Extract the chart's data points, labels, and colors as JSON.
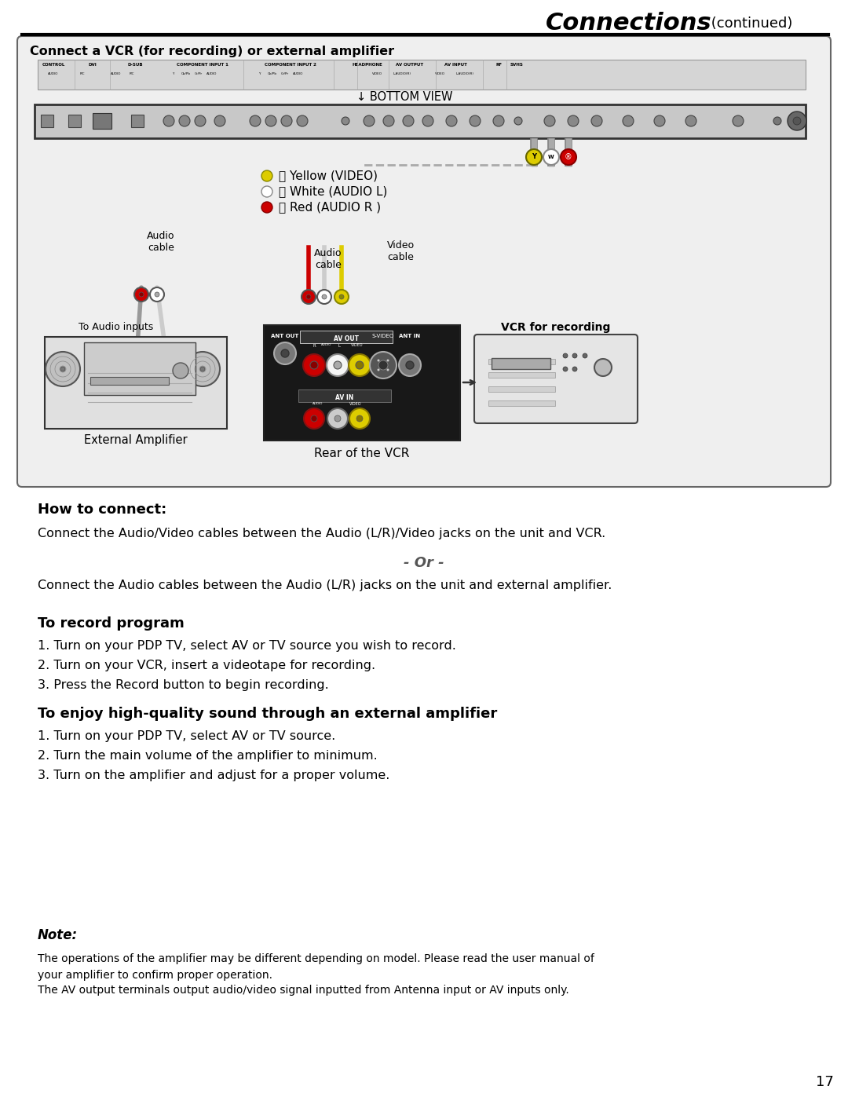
{
  "page_title": "Connections",
  "page_title_suffix": " (continued)",
  "page_number": "17",
  "bg_color": "#ffffff",
  "box_title": "Connect a VCR (for recording) or external amplifier",
  "how_to_connect_title": "How to connect:",
  "how_to_connect_text1": "Connect the Audio/Video cables between the Audio (L/R)/Video jacks on the unit and VCR.",
  "how_to_connect_or": "- Or -",
  "how_to_connect_text2": "Connect the Audio cables between the Audio (L/R) jacks on the unit and external amplifier.",
  "record_title": "To record program",
  "record_steps": [
    "1. Turn on your PDP TV, select AV or TV source you wish to record.",
    "2. Turn on your VCR, insert a videotape for recording.",
    "3. Press the Record button to begin recording."
  ],
  "enjoy_title": "To enjoy high-quality sound through an external amplifier",
  "enjoy_steps": [
    "1. Turn on your PDP TV, select AV or TV source.",
    "2. Turn the main volume of the amplifier to minimum.",
    "3. Turn on the amplifier and adjust for a proper volume."
  ],
  "note_title": "Note:",
  "note_text1": "The operations of the amplifier may be different depending on model. Please read the user manual of",
  "note_text2": "your amplifier to confirm proper operation.",
  "note_text3": "The AV output terminals output audio/video signal inputted from Antenna input or AV inputs only.",
  "yellow_label": "ⓨ Yellow (VIDEO)",
  "white_label": "ⓩ White (AUDIO L)",
  "red_label": "ⓡ Red (AUDIO R )",
  "audio_cable_label1": "Audio\ncable",
  "audio_cable_label2": "Audio\ncable",
  "video_cable_label": "Video\ncable",
  "to_audio_inputs": "To Audio inputs",
  "ext_amp_label": "External Amplifier",
  "rear_vcr_label": "Rear of the VCR",
  "vcr_recording_label": "VCR for recording",
  "bottom_view": "BOTTOM VIEW",
  "strip_labels": [
    [
      "CONTROL",
      68
    ],
    [
      "DVI",
      118
    ],
    [
      "D-SUB",
      172
    ],
    [
      "COMPONENT INPUT 1",
      258
    ],
    [
      "COMPONENT INPUT 2",
      370
    ],
    [
      "HEADPHONE",
      468
    ],
    [
      "AV OUTPUT",
      522
    ],
    [
      "AV INPUT",
      580
    ],
    [
      "RF",
      635
    ],
    [
      "SVHS",
      658
    ]
  ],
  "strip_sublabels": [
    [
      "AUDIO",
      68
    ],
    [
      "PIC",
      105
    ],
    [
      "AUDIO",
      148
    ],
    [
      "PIC",
      168
    ],
    [
      "Y",
      220
    ],
    [
      "Cb/Pb",
      237
    ],
    [
      "Cr/Pr",
      253
    ],
    [
      "AUDIO",
      270
    ],
    [
      "Y",
      330
    ],
    [
      "Cb/Pb",
      347
    ],
    [
      "Cr/Pr",
      363
    ],
    [
      "AUDIO",
      380
    ],
    [
      "VIDEO",
      480
    ],
    [
      "L-AUDIO(R)",
      512
    ],
    [
      "VIDEO",
      560
    ],
    [
      "L-AUDIO(R)",
      592
    ]
  ]
}
